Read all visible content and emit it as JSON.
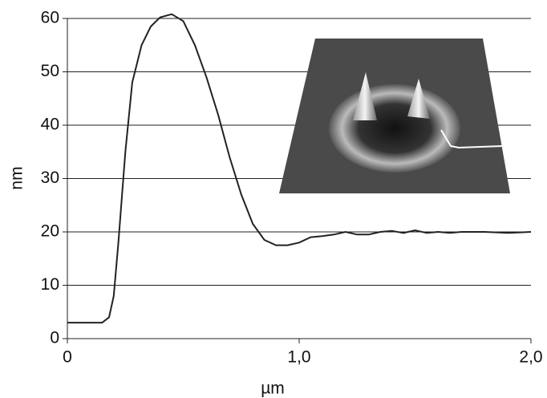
{
  "chart_data": {
    "type": "line",
    "x": [
      0,
      0.1,
      0.15,
      0.18,
      0.2,
      0.22,
      0.25,
      0.28,
      0.32,
      0.36,
      0.4,
      0.45,
      0.5,
      0.55,
      0.6,
      0.65,
      0.7,
      0.75,
      0.8,
      0.85,
      0.9,
      0.95,
      1.0,
      1.05,
      1.1,
      1.15,
      1.2,
      1.25,
      1.3,
      1.35,
      1.4,
      1.45,
      1.5,
      1.55,
      1.6,
      1.65,
      1.7,
      1.8,
      1.9,
      2.0
    ],
    "series": [
      {
        "color": "#222222",
        "values": [
          3,
          3,
          3,
          4,
          8,
          18,
          35,
          48,
          55,
          58.5,
          60.2,
          60.8,
          59.5,
          55,
          49,
          42,
          34,
          27,
          21.5,
          18.5,
          17.5,
          17.5,
          18,
          19,
          19.2,
          19.5,
          20,
          19.5,
          19.5,
          20,
          20.2,
          19.8,
          20.3,
          19.8,
          20,
          19.8,
          20,
          20,
          19.8,
          20
        ]
      }
    ],
    "xlabel": "µm",
    "ylabel": "nm",
    "xlim": [
      0,
      2
    ],
    "ylim": [
      0,
      60
    ],
    "xticks": [
      0,
      {
        "value": 1,
        "label": "1,0"
      },
      {
        "value": 2,
        "label": "2,0"
      }
    ],
    "yticks": [
      0,
      10,
      20,
      30,
      40,
      50,
      60
    ],
    "grid": true
  }
}
